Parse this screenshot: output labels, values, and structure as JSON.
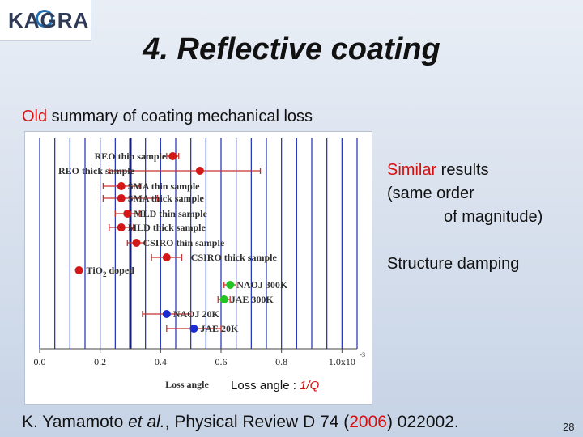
{
  "logo": {
    "text": "KAGRA"
  },
  "title": "4. Reflective coating",
  "subtitle": {
    "old": "Old",
    "rest": " summary of coating mechanical loss"
  },
  "chart_data": {
    "type": "scatter",
    "xlabel": "Loss angle",
    "caption_prefix": "Loss angle : ",
    "caption_red": "1/Q",
    "x_ticks": [
      "0.0",
      "0.2",
      "0.4",
      "0.6",
      "0.8",
      "1.0x10"
    ],
    "x_exponent": "-3",
    "xlim": [
      0,
      1.05
    ],
    "reference_line": 0.3,
    "series": [
      {
        "name": "REO thin sample",
        "value": 0.44,
        "err_minus": 0.02,
        "err_plus": 0.02,
        "color": "#d31818",
        "label": "REO thin sample"
      },
      {
        "name": "REO thick sample",
        "value": 0.53,
        "err_minus": 0.3,
        "err_plus": 0.2,
        "color": "#d31818",
        "label": "REO thick sample"
      },
      {
        "name": "SMA thin sample",
        "value": 0.27,
        "err_minus": 0.06,
        "err_plus": 0.06,
        "color": "#d31818",
        "label": "SMA thin sample"
      },
      {
        "name": "SMA thick sample",
        "value": 0.27,
        "err_minus": 0.06,
        "err_plus": 0.12,
        "color": "#d31818",
        "label": "SMA thick sample"
      },
      {
        "name": "MLD thin sample",
        "value": 0.29,
        "err_minus": 0.04,
        "err_plus": 0.04,
        "color": "#d31818",
        "label": "MLD thin sample"
      },
      {
        "name": "MLD thick sample",
        "value": 0.27,
        "err_minus": 0.04,
        "err_plus": 0.04,
        "color": "#d31818",
        "label": "MLD thick sample"
      },
      {
        "name": "CSIRO thin sample",
        "value": 0.32,
        "err_minus": 0.03,
        "err_plus": 0.03,
        "color": "#d31818",
        "label": "CSIRO thin sample"
      },
      {
        "name": "CSIRO thick sample",
        "value": 0.42,
        "err_minus": 0.05,
        "err_plus": 0.05,
        "color": "#d31818",
        "label": "CSIRO thick sample"
      },
      {
        "name": "TiO2 doped",
        "value": 0.13,
        "err_minus": 0.0,
        "err_plus": 0.0,
        "color": "#d31818",
        "label": "TiO",
        "label_sub": "2",
        "label_tail": " doped"
      },
      {
        "name": "NAOJ 300K",
        "value": 0.63,
        "err_minus": 0.02,
        "err_plus": 0.02,
        "color": "#22c322",
        "label": "NAOJ 300K"
      },
      {
        "name": "JAE 300K",
        "value": 0.61,
        "err_minus": 0.02,
        "err_plus": 0.02,
        "color": "#22c322",
        "label": "JAE 300K"
      },
      {
        "name": "NAOJ 20K",
        "value": 0.42,
        "err_minus": 0.08,
        "err_plus": 0.08,
        "color": "#1a2bd1",
        "label": "NAOJ 20K"
      },
      {
        "name": "JAE 20K",
        "value": 0.51,
        "err_minus": 0.09,
        "err_plus": 0.09,
        "color": "#1a2bd1",
        "label": "JAE 20K"
      }
    ]
  },
  "notes": {
    "similar_red": "Similar",
    "similar_rest": " results",
    "line2": "(same order",
    "line3": "of magnitude)",
    "structure": "Structure damping"
  },
  "citation": {
    "authors_pre": "K. Yamamoto ",
    "etal": "et al.",
    "journal": ", Physical Review D 74 (",
    "year": "2006",
    "rest": ") 022002."
  },
  "page_number": "28"
}
